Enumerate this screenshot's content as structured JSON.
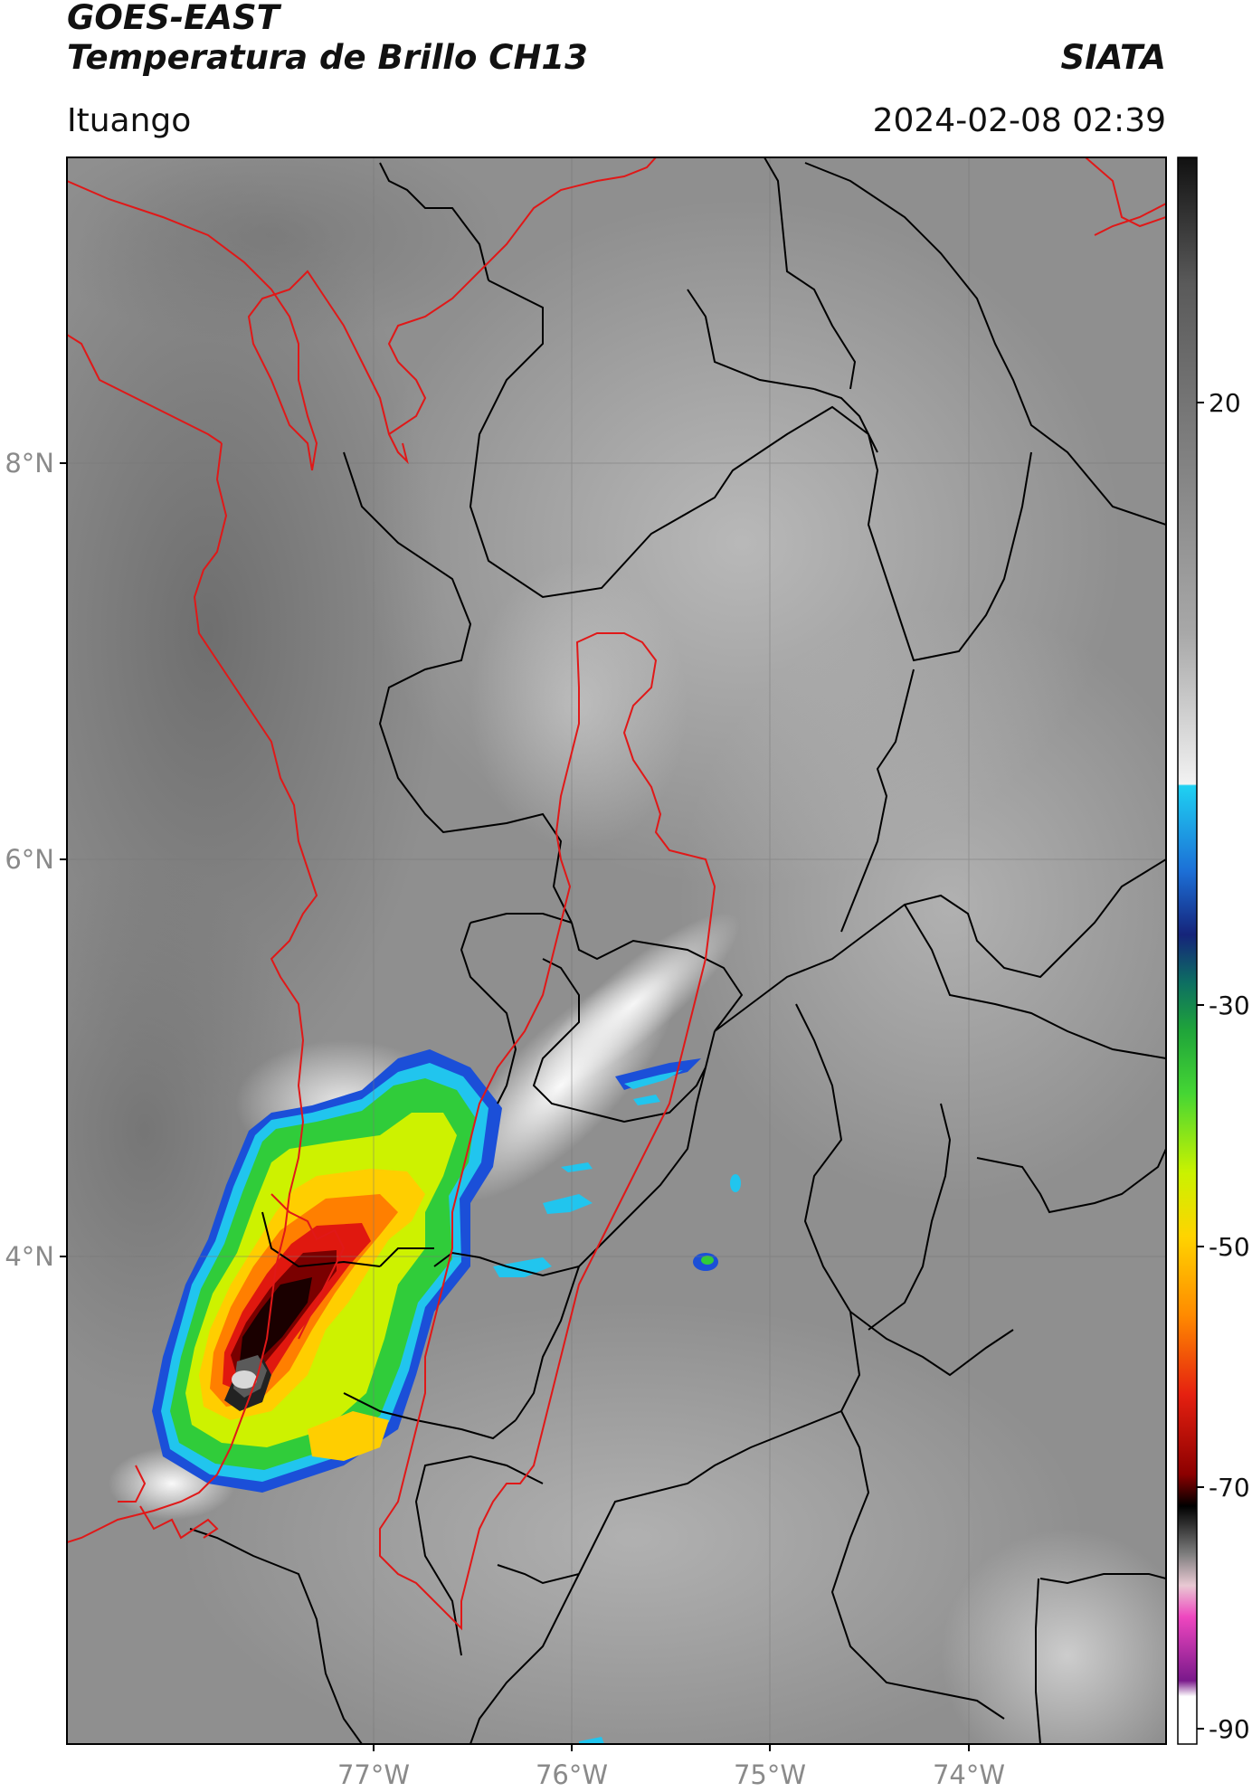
{
  "header": {
    "title": "GOES-EAST",
    "subtitle": "Temperatura de Brillo CH13",
    "organization": "SIATA",
    "location": "Ituango",
    "timestamp": "2024-02-08 02:39"
  },
  "map": {
    "latitude_labels": [
      "8°N",
      "6°N",
      "4°N"
    ],
    "longitude_labels": [
      "77°W",
      "76°W",
      "75°W",
      "74°W"
    ],
    "country_border_color": "#e01818",
    "department_border_color": "#000000"
  },
  "colorbar": {
    "tick_labels": [
      "20",
      "-30",
      "-50",
      "-70",
      "-90"
    ],
    "range": [
      -90,
      30
    ],
    "colors_top_to_bottom": [
      "#101010",
      "#606060",
      "#bdbdbd",
      "#f4f4f4",
      "#22c4ef",
      "#1f6ad0",
      "#13206f",
      "#138a44",
      "#3fd23a",
      "#c8f000",
      "#ffd400",
      "#ff7a00",
      "#d80f0f",
      "#6c0000",
      "#000000",
      "#8a8a8a",
      "#e6c6d0",
      "#ef4fbf",
      "#7b1a8c",
      "#ffffff"
    ]
  }
}
